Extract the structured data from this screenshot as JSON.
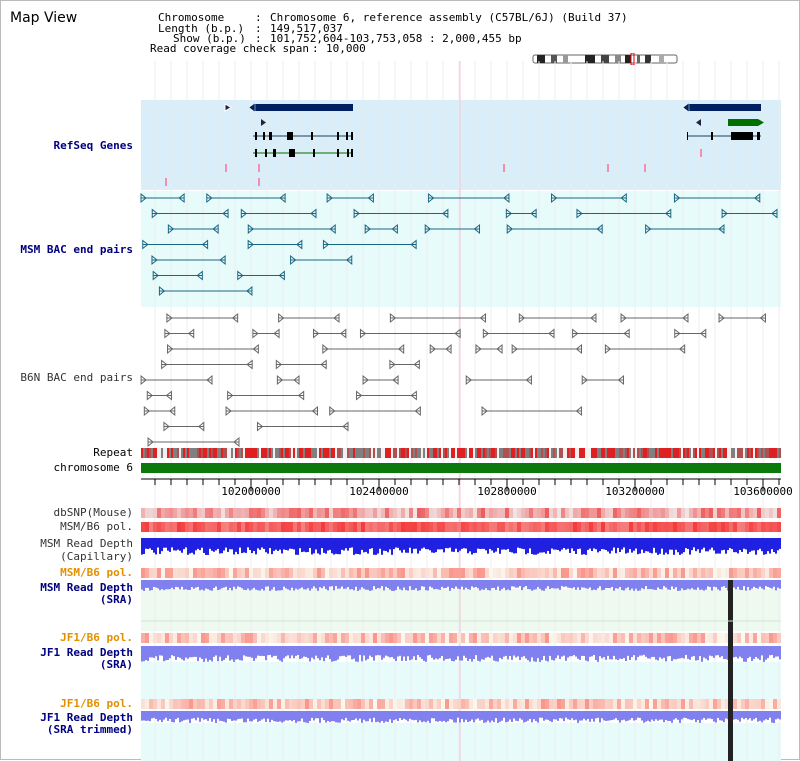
{
  "title": "Map View",
  "info": {
    "chromosome_label": "Chromosome",
    "chromosome_value": "Chromosome 6, reference assembly (C57BL/6J) (Build 37)",
    "length_label": "Length (b.p.)",
    "length_value": "149,517,037",
    "show_label": "Show (b.p.)",
    "show_value": "101,752,604-103,753,058 : 2,000,455 bp",
    "coverage_label": "Read coverage check span",
    "coverage_value": "10,000"
  },
  "tracks": {
    "refseq": "RefSeq Genes",
    "msm_bac": "MSM BAC end pairs",
    "b6n_bac": "B6N BAC end pairs",
    "repeat": "Repeat",
    "chromosome": "chromosome 6",
    "dbsnp": "dbSNP(Mouse)",
    "msm_b6_pol_1": "MSM/B6 pol.",
    "msm_depth_cap_1": "MSM Read Depth",
    "msm_depth_cap_2": "(Capillary)",
    "msm_b6_pol_2": "MSM/B6 pol.",
    "msm_depth_sra_1": "MSM Read Depth",
    "msm_depth_sra_2": "(SRA)",
    "jf1_b6_pol_1": "JF1/B6 pol.",
    "jf1_depth_sra_1": "JF1 Read Depth",
    "jf1_depth_sra_2": "(SRA)",
    "jf1_b6_pol_2": "JF1/B6 pol.",
    "jf1_depth_trim_1": "JF1 Read Depth",
    "jf1_depth_trim_2": "(SRA trimmed)"
  },
  "axis": {
    "ticks": [
      "102000000",
      "102400000",
      "102800000",
      "103200000",
      "103600000"
    ]
  },
  "colors": {
    "refseq_bg": "#d9eef9",
    "msm_bg": "#e8fbfb",
    "sra_bg": "#eefaf0",
    "trim_bg": "#e8fbfb",
    "gene_dark": "#002060",
    "gene_green": "#007000",
    "msm_pair": "#1a6680",
    "b6n_pair": "#666666",
    "chrom_green": "#0b7a0b",
    "depth_blue": "#2020e0",
    "depth_light": "#8080ee"
  }
}
